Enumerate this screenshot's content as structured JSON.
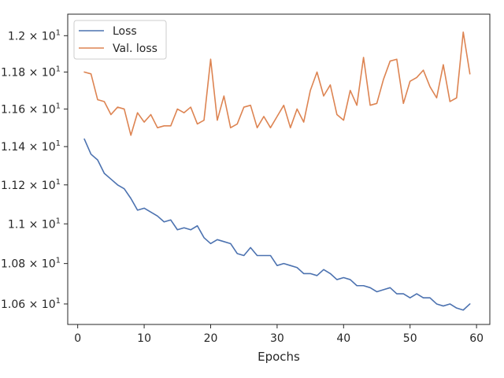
{
  "chart_data": {
    "type": "line",
    "xlabel": "Epochs",
    "ylabel": "",
    "title": "",
    "xlim": [
      -1.5,
      62
    ],
    "ylim": [
      10.5,
      12.12
    ],
    "y_scale": "log",
    "grid": false,
    "legend_position": "top-left",
    "x_ticks": [
      0,
      10,
      20,
      30,
      40,
      50,
      60
    ],
    "y_ticks": [
      {
        "value": 10.6,
        "mantissa": "1.06",
        "base": "10",
        "exp": "1"
      },
      {
        "value": 10.8,
        "mantissa": "1.08",
        "base": "10",
        "exp": "1"
      },
      {
        "value": 11.0,
        "mantissa": "1.1",
        "base": "10",
        "exp": "1"
      },
      {
        "value": 11.2,
        "mantissa": "1.12",
        "base": "10",
        "exp": "1"
      },
      {
        "value": 11.4,
        "mantissa": "1.14",
        "base": "10",
        "exp": "1"
      },
      {
        "value": 11.6,
        "mantissa": "1.16",
        "base": "10",
        "exp": "1"
      },
      {
        "value": 11.8,
        "mantissa": "1.18",
        "base": "10",
        "exp": "1"
      },
      {
        "value": 12.0,
        "mantissa": "1.2",
        "base": "10",
        "exp": "1"
      }
    ],
    "tick_times": "×",
    "series": [
      {
        "name": "Loss",
        "color": "#4c72b0",
        "x": [
          1,
          2,
          3,
          4,
          5,
          6,
          7,
          8,
          9,
          10,
          11,
          12,
          13,
          14,
          15,
          16,
          17,
          18,
          19,
          20,
          21,
          22,
          23,
          24,
          25,
          26,
          27,
          28,
          29,
          30,
          31,
          32,
          33,
          34,
          35,
          36,
          37,
          38,
          39,
          40,
          41,
          42,
          43,
          44,
          45,
          46,
          47,
          48,
          49,
          50,
          51,
          52,
          53,
          54,
          55,
          56,
          57,
          58,
          59
        ],
        "y": [
          11.44,
          11.36,
          11.33,
          11.26,
          11.23,
          11.2,
          11.18,
          11.13,
          11.07,
          11.08,
          11.06,
          11.04,
          11.01,
          11.02,
          10.97,
          10.98,
          10.97,
          10.99,
          10.93,
          10.9,
          10.92,
          10.91,
          10.9,
          10.85,
          10.84,
          10.88,
          10.84,
          10.84,
          10.84,
          10.79,
          10.8,
          10.79,
          10.78,
          10.75,
          10.75,
          10.74,
          10.77,
          10.75,
          10.72,
          10.73,
          10.72,
          10.69,
          10.69,
          10.68,
          10.66,
          10.67,
          10.68,
          10.65,
          10.65,
          10.63,
          10.65,
          10.63,
          10.63,
          10.6,
          10.59,
          10.6,
          10.58,
          10.57,
          10.6
        ]
      },
      {
        "name": "Val. loss",
        "color": "#dd8452",
        "x": [
          1,
          2,
          3,
          4,
          5,
          6,
          7,
          8,
          9,
          10,
          11,
          12,
          13,
          14,
          15,
          16,
          17,
          18,
          19,
          20,
          21,
          22,
          23,
          24,
          25,
          26,
          27,
          28,
          29,
          30,
          31,
          32,
          33,
          34,
          35,
          36,
          37,
          38,
          39,
          40,
          41,
          42,
          43,
          44,
          45,
          46,
          47,
          48,
          49,
          50,
          51,
          52,
          53,
          54,
          55,
          56,
          57,
          58,
          59
        ],
        "y": [
          11.8,
          11.79,
          11.65,
          11.64,
          11.57,
          11.61,
          11.6,
          11.46,
          11.58,
          11.53,
          11.57,
          11.5,
          11.51,
          11.51,
          11.6,
          11.58,
          11.61,
          11.52,
          11.54,
          11.87,
          11.54,
          11.67,
          11.5,
          11.52,
          11.61,
          11.62,
          11.5,
          11.56,
          11.5,
          11.56,
          11.62,
          11.5,
          11.6,
          11.53,
          11.7,
          11.8,
          11.67,
          11.73,
          11.57,
          11.54,
          11.7,
          11.62,
          11.88,
          11.62,
          11.63,
          11.76,
          11.86,
          11.87,
          11.63,
          11.75,
          11.77,
          11.81,
          11.72,
          11.66,
          11.84,
          11.64,
          11.66,
          12.02,
          11.79
        ]
      }
    ]
  }
}
